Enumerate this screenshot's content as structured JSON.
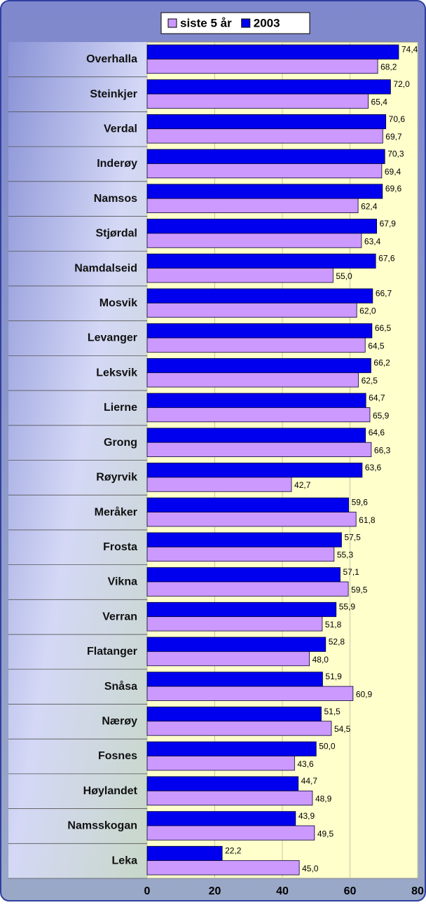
{
  "chart_data": {
    "type": "barh",
    "categories": [
      "Overhalla",
      "Steinkjer",
      "Verdal",
      "Inderøy",
      "Namsos",
      "Stjørdal",
      "Namdalseid",
      "Mosvik",
      "Levanger",
      "Leksvik",
      "Lierne",
      "Grong",
      "Røyrvik",
      "Meråker",
      "Frosta",
      "Vikna",
      "Verran",
      "Flatanger",
      "Snåsa",
      "Nærøy",
      "Fosnes",
      "Høylandet",
      "Namsskogan",
      "Leka"
    ],
    "series": [
      {
        "name": "siste 5 år",
        "color": "#cc99ff",
        "values": [
          68.2,
          65.4,
          69.7,
          69.4,
          62.4,
          63.4,
          55.0,
          62.0,
          64.5,
          62.5,
          65.9,
          66.3,
          42.7,
          61.8,
          55.3,
          59.5,
          51.8,
          48.0,
          60.9,
          54.5,
          43.6,
          48.9,
          49.5,
          45.0
        ],
        "value_labels": [
          "68,2",
          "65,4",
          "69,7",
          "69,4",
          "62,4",
          "63,4",
          "55,0",
          "62,0",
          "64,5",
          "62,5",
          "65,9",
          "66,3",
          "42,7",
          "61,8",
          "55,3",
          "59,5",
          "51,8",
          "48,0",
          "60,9",
          "54,5",
          "43,6",
          "48,9",
          "49,5",
          "45,0"
        ]
      },
      {
        "name": "2003",
        "color": "#0000ee",
        "values": [
          74.4,
          72.0,
          70.6,
          70.3,
          69.6,
          67.9,
          67.6,
          66.7,
          66.5,
          66.2,
          64.7,
          64.6,
          63.6,
          59.6,
          57.5,
          57.1,
          55.9,
          52.8,
          51.9,
          51.5,
          50.0,
          44.7,
          43.9,
          22.2
        ],
        "value_labels": [
          "74,4",
          "72,0",
          "70,6",
          "70,3",
          "69,6",
          "67,9",
          "67,6",
          "66,7",
          "66,5",
          "66,2",
          "64,7",
          "64,6",
          "63,6",
          "59,6",
          "57,5",
          "57,1",
          "55,9",
          "52,8",
          "51,9",
          "51,5",
          "50,0",
          "44,7",
          "43,9",
          "22,2"
        ]
      }
    ],
    "xlim": [
      0,
      80
    ],
    "xticks": [
      0,
      20,
      40,
      60,
      80
    ],
    "grid": true,
    "legend": "top"
  }
}
